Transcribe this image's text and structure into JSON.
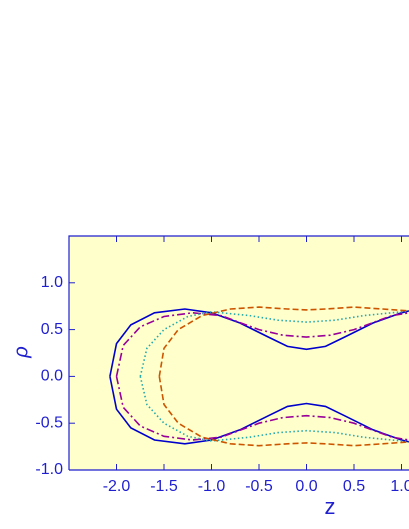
{
  "chart_data": {
    "type": "line",
    "x_label": "z",
    "y_label": "ρ",
    "xlim": [
      -2.5,
      1.1
    ],
    "ylim": [
      -1.0,
      1.5
    ],
    "xticks": [
      {
        "value": -2,
        "label": "-2.0"
      },
      -1.5,
      {
        "value": -1,
        "label": "-1.0"
      },
      -0.5,
      {
        "value": 0,
        "label": "0.0"
      },
      0.5,
      {
        "value": 1,
        "label": "1.0"
      }
    ],
    "yticks": [
      {
        "value": -1,
        "label": "-1.0"
      },
      -0.5,
      {
        "value": 0,
        "label": "0.0"
      },
      0.5,
      {
        "value": 1,
        "label": "1.0"
      }
    ],
    "background": "#ffffcc",
    "axis_color": "#1f1fcf",
    "series": [
      {
        "color": "#0000cc",
        "dash": "solid",
        "x": [
          -2.07,
          -2.0,
          -1.85,
          -1.6,
          -1.28,
          -1.0,
          -0.7,
          -0.4,
          -0.2,
          0,
          0.2,
          0.4,
          0.7,
          1.0,
          1.08,
          null,
          -2.07,
          -2.0,
          -1.85,
          -1.6,
          -1.28,
          -1.0,
          -0.7,
          -0.4,
          -0.2,
          0,
          0.2,
          0.4,
          0.7,
          1.0,
          1.08
        ],
        "values": [
          0,
          0.35,
          0.55,
          0.68,
          0.72,
          0.68,
          0.57,
          0.42,
          0.32,
          0.29,
          0.32,
          0.42,
          0.57,
          0.68,
          0.7,
          null,
          0,
          -0.35,
          -0.55,
          -0.68,
          -0.72,
          -0.68,
          -0.57,
          -0.42,
          -0.32,
          -0.29,
          -0.32,
          -0.42,
          -0.57,
          -0.68,
          -0.7
        ]
      },
      {
        "color": "#990099",
        "dash": "dashdot",
        "x": [
          -2.0,
          -1.93,
          -1.75,
          -1.5,
          -1.2,
          -0.9,
          -0.5,
          -0.25,
          0,
          0.25,
          0.5,
          0.9,
          1.08,
          null,
          -2.0,
          -1.93,
          -1.75,
          -1.5,
          -1.2,
          -0.9,
          -0.5,
          -0.25,
          0,
          0.25,
          0.5,
          0.9,
          1.08
        ],
        "values": [
          0,
          0.33,
          0.53,
          0.64,
          0.68,
          0.65,
          0.5,
          0.44,
          0.42,
          0.44,
          0.5,
          0.65,
          0.68,
          null,
          0,
          -0.33,
          -0.53,
          -0.64,
          -0.68,
          -0.65,
          -0.5,
          -0.44,
          -0.42,
          -0.44,
          -0.5,
          -0.65,
          -0.68
        ]
      },
      {
        "color": "#22aaaa",
        "dash": "dotted",
        "x": [
          -1.75,
          -1.68,
          -1.5,
          -1.25,
          -1.0,
          -0.6,
          -0.3,
          0,
          0.3,
          0.6,
          1.0,
          1.08,
          null,
          -1.75,
          -1.68,
          -1.5,
          -1.25,
          -1.0,
          -0.6,
          -0.3,
          0,
          0.3,
          0.6,
          1.0,
          1.08
        ],
        "values": [
          0,
          0.3,
          0.5,
          0.64,
          0.69,
          0.65,
          0.6,
          0.58,
          0.6,
          0.65,
          0.69,
          0.7,
          null,
          0,
          -0.3,
          -0.5,
          -0.64,
          -0.69,
          -0.65,
          -0.6,
          -0.58,
          -0.6,
          -0.65,
          -0.69,
          -0.7
        ]
      },
      {
        "color": "#cc5500",
        "dash": "dashed",
        "x": [
          -1.55,
          -1.5,
          -1.35,
          -1.1,
          -0.8,
          -0.5,
          -0.2,
          0,
          0.2,
          0.5,
          0.8,
          1.08,
          null,
          -1.55,
          -1.5,
          -1.35,
          -1.1,
          -0.8,
          -0.5,
          -0.2,
          0,
          0.2,
          0.5,
          0.8,
          1.08
        ],
        "values": [
          0,
          0.3,
          0.5,
          0.65,
          0.72,
          0.74,
          0.72,
          0.71,
          0.72,
          0.74,
          0.72,
          0.7,
          null,
          0,
          -0.3,
          -0.5,
          -0.65,
          -0.72,
          -0.74,
          -0.72,
          -0.71,
          -0.72,
          -0.74,
          -0.72,
          -0.7
        ]
      }
    ]
  }
}
